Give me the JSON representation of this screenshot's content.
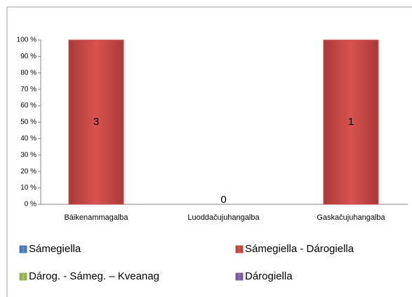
{
  "chart_data": {
    "type": "bar",
    "stacked": "percent",
    "categories": [
      "Báikenammagalba",
      "Luoddačujuhangalba",
      "Gaskačujuhangalba"
    ],
    "series": [
      {
        "name": "Sámegiella",
        "color": "#4f81bd",
        "values": [
          0,
          0,
          0
        ]
      },
      {
        "name": "Sámegiella  - Dárogiella",
        "color": "#c0504d",
        "values": [
          3,
          0,
          1
        ],
        "data_labels": true
      },
      {
        "name": "Dárog. - Sámeg. – Kveanag",
        "color": "#9bbb59",
        "values": [
          0,
          0,
          0
        ]
      },
      {
        "name": "Dárogiella",
        "color": "#8064a2",
        "values": [
          0,
          0,
          0
        ]
      }
    ],
    "ylim": [
      0,
      100
    ],
    "yticks": [
      {
        "value": 0,
        "label": "0 %"
      },
      {
        "value": 10,
        "label": "10 %"
      },
      {
        "value": 20,
        "label": "20 %"
      },
      {
        "value": 30,
        "label": "30 %"
      },
      {
        "value": 40,
        "label": "40 %"
      },
      {
        "value": 50,
        "label": "50 %"
      },
      {
        "value": 60,
        "label": "60 %"
      },
      {
        "value": 70,
        "label": "70 %"
      },
      {
        "value": 80,
        "label": "80 %"
      },
      {
        "value": 90,
        "label": "90 %"
      },
      {
        "value": 100,
        "label": "100 %"
      }
    ],
    "grid": false,
    "legend": "bottom"
  }
}
